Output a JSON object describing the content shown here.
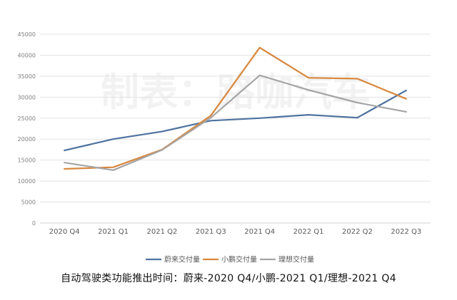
{
  "chart_data": {
    "type": "line",
    "categories": [
      "2020 Q4",
      "2021 Q1",
      "2021 Q2",
      "2021 Q3",
      "2021 Q4",
      "2022 Q1",
      "2022 Q2",
      "2022 Q3"
    ],
    "series": [
      {
        "name": "蔚来交付量",
        "color": "#4e73a0",
        "values": [
          17300,
          20000,
          21800,
          24400,
          25000,
          25800,
          25100,
          31600
        ]
      },
      {
        "name": "小鹏交付量",
        "color": "#d8873e",
        "values": [
          12900,
          13300,
          17500,
          25600,
          41800,
          34600,
          34400,
          29600
        ]
      },
      {
        "name": "理想交付量",
        "color": "#a5a5a5",
        "values": [
          14400,
          12600,
          17400,
          25100,
          35200,
          31700,
          28700,
          26500
        ]
      }
    ],
    "y_ticks": [
      "0",
      "5000",
      "10000",
      "15000",
      "20000",
      "25000",
      "30000",
      "35000",
      "40000",
      "45000"
    ],
    "ylim": [
      0,
      45000
    ],
    "grid": true,
    "legend": "bottom",
    "title": "",
    "xlabel": "",
    "ylabel": ""
  },
  "watermark": "制表：路咖汽车",
  "caption": "自动驾驶类功能推出时间：蔚来-2020 Q4/小鹏-2021 Q1/理想-2021 Q4"
}
